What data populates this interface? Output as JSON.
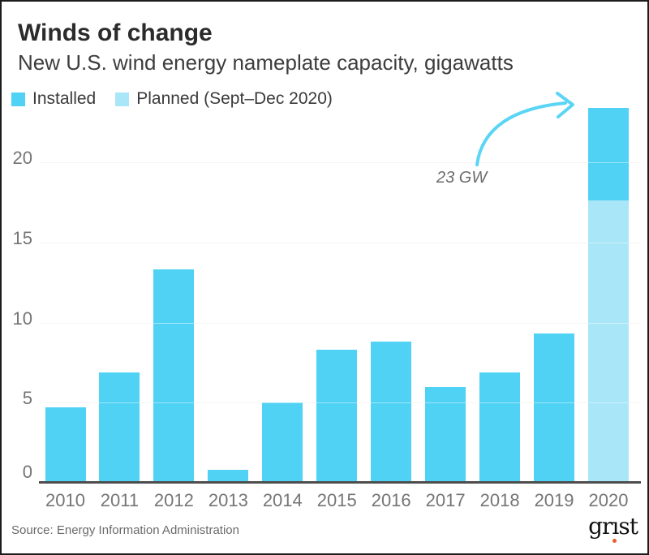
{
  "header": {
    "title": "Winds of change",
    "subtitle": "New U.S. wind energy nameplate capacity, gigawatts"
  },
  "legend": [
    {
      "label": "Installed",
      "color": "#4fd2f4"
    },
    {
      "label": "Planned (Sept–Dec 2020)",
      "color": "#a9e6f8"
    }
  ],
  "annotation": {
    "text": "23 GW"
  },
  "footer": {
    "source": "Source: Energy Information Administration",
    "logo": [
      "gr",
      "ı",
      "st"
    ]
  },
  "colors": {
    "installed": "#4fd2f4",
    "planned": "#a9e6f8",
    "arrow": "#5ad5f5",
    "axis": "#4d4d4d",
    "gridline": "#ededed",
    "tick_text": "#757575",
    "logo_dot": "#ee5b2e"
  },
  "chart_data": {
    "type": "bar",
    "stacked": true,
    "title": "Winds of change",
    "subtitle": "New U.S. wind energy nameplate capacity, gigawatts",
    "xlabel": "",
    "ylabel": "gigawatts",
    "categories": [
      "2010",
      "2011",
      "2012",
      "2013",
      "2014",
      "2015",
      "2016",
      "2017",
      "2018",
      "2019",
      "2020"
    ],
    "series": [
      {
        "name": "Installed",
        "color": "#4fd2f4",
        "values": [
          4.7,
          6.9,
          13.3,
          0.8,
          5.0,
          8.3,
          8.8,
          6.0,
          6.9,
          9.3,
          5.8
        ]
      },
      {
        "name": "Planned (Sept–Dec 2020)",
        "color": "#a9e6f8",
        "values": [
          0,
          0,
          0,
          0,
          0,
          0,
          0,
          0,
          0,
          0,
          17.6
        ]
      }
    ],
    "annotations": [
      {
        "text": "23 GW",
        "target_category": "2020",
        "target_value": 23.4
      }
    ],
    "yticks": [
      0,
      5,
      10,
      15,
      20
    ],
    "ylim": [
      0,
      23.5
    ],
    "grid": true,
    "legend_position": "top-left"
  }
}
